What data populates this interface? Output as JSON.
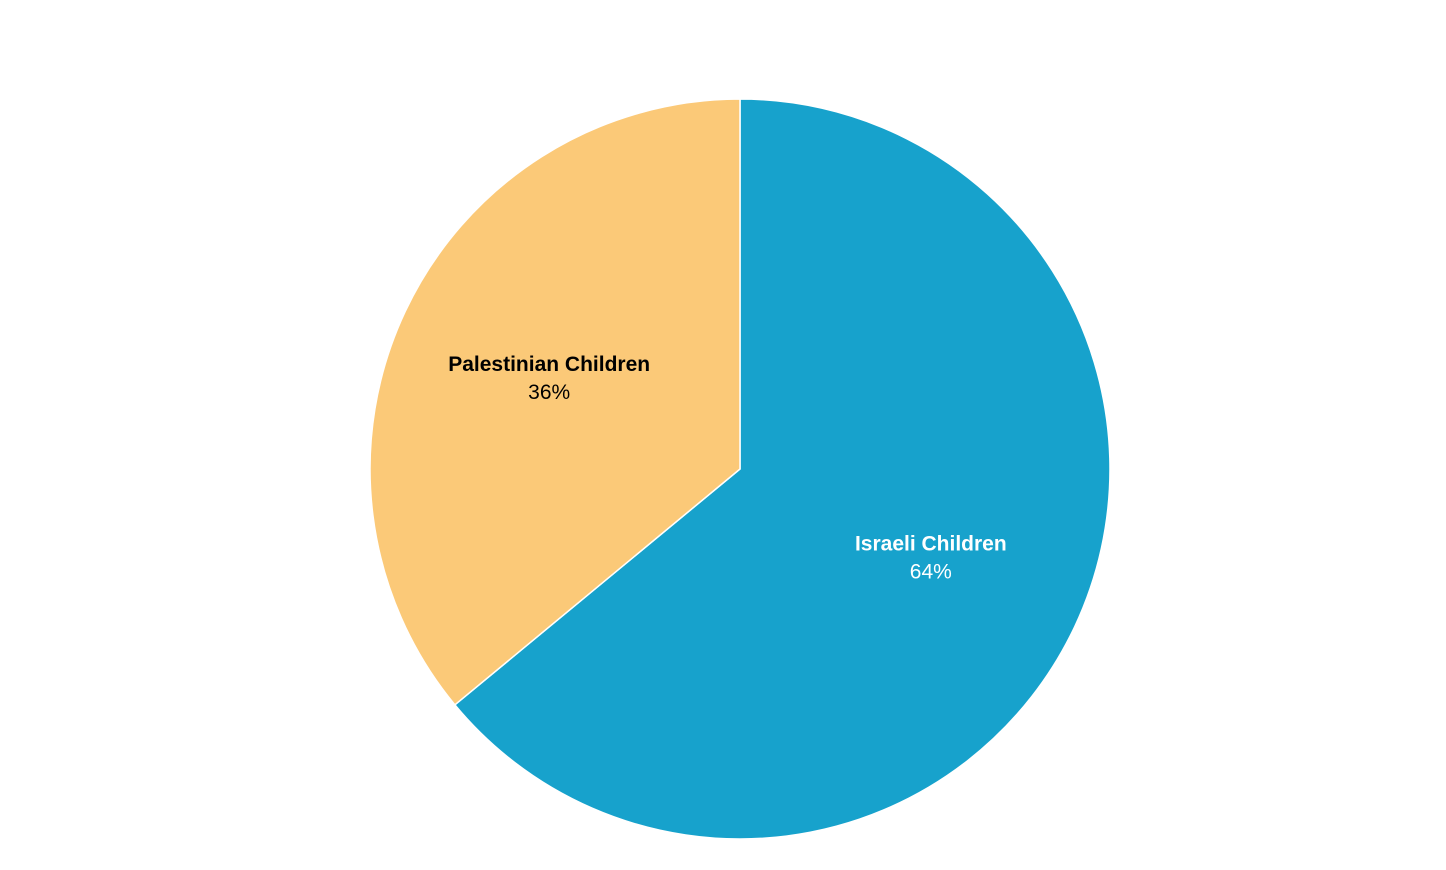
{
  "chart_data": {
    "type": "pie",
    "categories": [
      "Israeli Children",
      "Palestinian Children"
    ],
    "values": [
      64,
      36
    ],
    "value_labels": [
      "64%",
      "36%"
    ],
    "colors": [
      "#17a2cc",
      "#fbc978"
    ]
  }
}
